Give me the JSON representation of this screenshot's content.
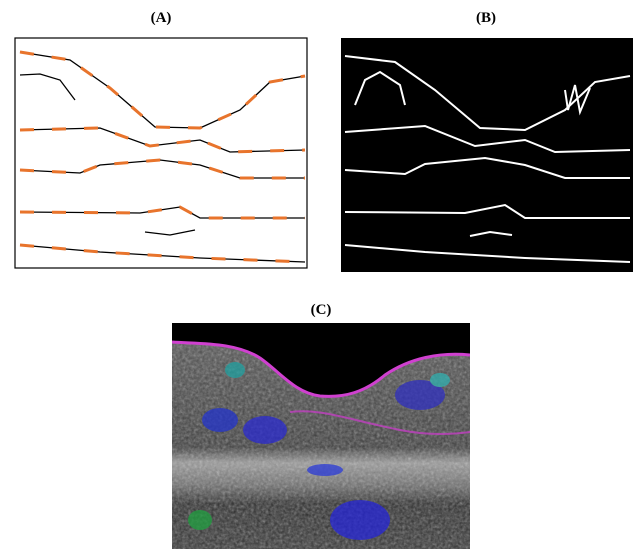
{
  "panels": [
    {
      "label": "(A)"
    },
    {
      "label": "(B)"
    },
    {
      "label": "(C)"
    }
  ]
}
